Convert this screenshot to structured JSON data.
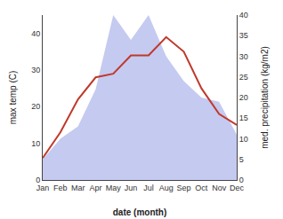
{
  "chart_data": {
    "type": "line",
    "categories": [
      "Jan",
      "Feb",
      "Mar",
      "Apr",
      "May",
      "Jun",
      "Jul",
      "Aug",
      "Sep",
      "Oct",
      "Nov",
      "Dec"
    ],
    "series": [
      {
        "type": "area",
        "color": "#c5caf0",
        "axis": "y2",
        "values": [
          5,
          10,
          13,
          22,
          40,
          34,
          40,
          30,
          24,
          20,
          19,
          11
        ]
      },
      {
        "type": "line",
        "color": "#c0392b",
        "values": [
          6,
          13,
          22,
          28,
          29,
          34,
          34,
          39,
          35,
          25,
          18,
          15
        ]
      }
    ],
    "xlabel": "date (month)",
    "ylabel": "max temp (C)",
    "y2label": "med. precipitation (kg/m2)",
    "ylim": [
      0,
      45
    ],
    "yticks": [
      0,
      10,
      20,
      30,
      40
    ],
    "y2lim": [
      0,
      40
    ],
    "y2ticks": [
      0,
      5,
      10,
      15,
      20,
      25,
      30,
      35,
      40
    ],
    "grid": false
  }
}
